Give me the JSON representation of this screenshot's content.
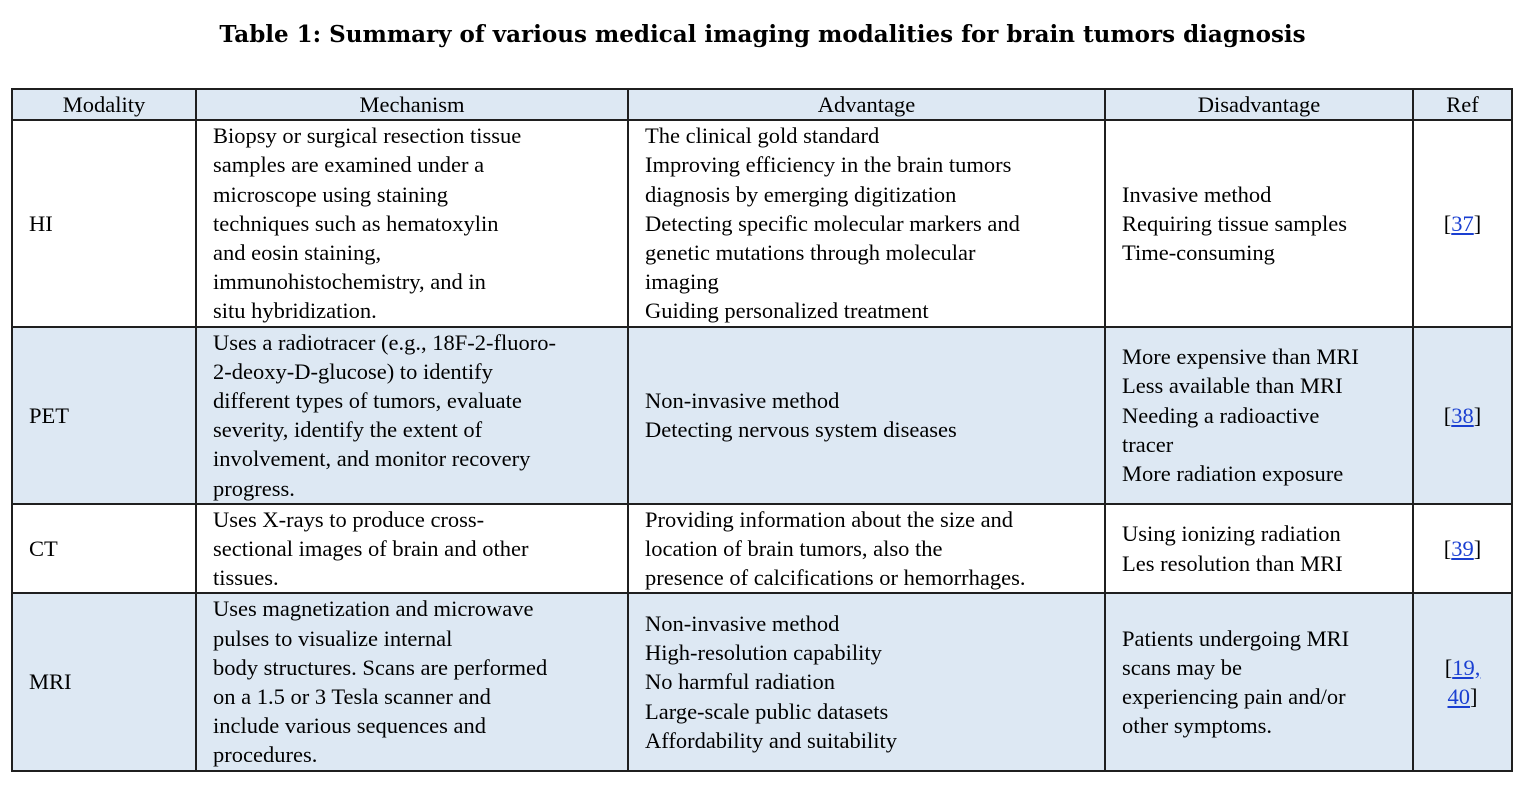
{
  "title": "Table 1: Summary of various medical imaging modalities for brain tumors diagnosis",
  "headers": [
    "Modality",
    "Mechanism",
    "Advantage",
    "Disadvantage",
    "Ref"
  ],
  "rows": [
    {
      "modality": "HI",
      "mechanism": [
        "Biopsy or surgical resection tissue",
        "samples are examined under a",
        "microscope using staining",
        "techniques such as hematoxylin",
        "and eosin staining,",
        "immunohistochemistry, and in",
        "situ hybridization."
      ],
      "advantage": [
        "The clinical gold standard",
        "Improving efficiency in the brain tumors",
        "diagnosis by emerging digitization",
        "Detecting specific molecular markers and",
        "genetic mutations through molecular",
        "imaging",
        "Guiding personalized treatment"
      ],
      "disadvantage": [
        "Invasive method",
        "Requiring tissue samples",
        "Time-consuming"
      ],
      "ref_open": "[",
      "ref_links": [
        "37"
      ],
      "ref_close": "]"
    },
    {
      "modality": "PET",
      "mechanism": [
        "Uses a radiotracer (e.g., 18F-2-fluoro-",
        "2-deoxy-D-glucose) to identify",
        "different types of tumors, evaluate",
        "severity, identify the extent of",
        "involvement, and monitor recovery",
        "progress."
      ],
      "advantage": [
        "Non-invasive method",
        "Detecting nervous system diseases"
      ],
      "disadvantage": [
        "More expensive than MRI",
        "Less available than MRI",
        "Needing a radioactive",
        "tracer",
        "More radiation exposure"
      ],
      "ref_open": "[",
      "ref_links": [
        "38"
      ],
      "ref_close": "]"
    },
    {
      "modality": "CT",
      "mechanism": [
        "Uses X-rays to produce cross-",
        "sectional images of brain and other",
        "tissues."
      ],
      "advantage": [
        "Providing information about the size and",
        "location of brain tumors, also the",
        "presence of calcifications or hemorrhages."
      ],
      "disadvantage": [
        "Using ionizing radiation",
        "Les resolution than MRI"
      ],
      "ref_open": "[",
      "ref_links": [
        "39"
      ],
      "ref_close": "]"
    },
    {
      "modality": "MRI",
      "mechanism": [
        "Uses magnetization and microwave",
        "pulses to visualize internal",
        "body structures. Scans are performed",
        "on a 1.5 or 3 Tesla scanner and",
        "include various sequences and",
        "procedures."
      ],
      "advantage": [
        "Non-invasive method",
        "High-resolution capability",
        "No harmful radiation",
        "Large-scale public datasets",
        "Affordability and suitability"
      ],
      "disadvantage": [
        "Patients undergoing MRI",
        "scans may be",
        "experiencing pain and/or",
        "other symptoms."
      ],
      "ref_open": "[",
      "ref_links": [
        "19,",
        "40"
      ],
      "ref_close": "]"
    }
  ],
  "colors": {
    "header_fill": "#dde8f3",
    "alt_row_fill": "#dde8f3",
    "link": "#1a3fd1"
  }
}
